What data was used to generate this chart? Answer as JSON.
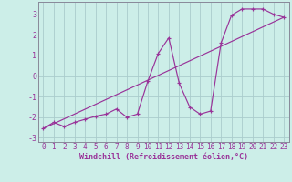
{
  "xlabel": "Windchill (Refroidissement éolien,°C)",
  "bg_color": "#cceee8",
  "grid_color": "#aacccc",
  "line_color": "#993399",
  "axis_color": "#888899",
  "xlim": [
    -0.5,
    23.5
  ],
  "ylim": [
    -3.2,
    3.6
  ],
  "yticks": [
    -3,
    -2,
    -1,
    0,
    1,
    2,
    3
  ],
  "xticks": [
    0,
    1,
    2,
    3,
    4,
    5,
    6,
    7,
    8,
    9,
    10,
    11,
    12,
    13,
    14,
    15,
    16,
    17,
    18,
    19,
    20,
    21,
    22,
    23
  ],
  "line1_x": [
    0,
    1,
    2,
    3,
    4,
    5,
    6,
    7,
    8,
    9,
    10,
    11,
    12,
    13,
    14,
    15,
    16,
    17,
    18,
    19,
    20,
    21,
    22,
    23
  ],
  "line1_y": [
    -2.55,
    -2.25,
    -2.45,
    -2.25,
    -2.1,
    -1.95,
    -1.85,
    -1.6,
    -2.0,
    -1.85,
    -0.25,
    1.1,
    1.85,
    -0.35,
    -1.5,
    -1.85,
    -1.7,
    1.6,
    2.95,
    3.25,
    3.25,
    3.25,
    3.0,
    2.85
  ],
  "line2_x": [
    0,
    23
  ],
  "line2_y": [
    -2.55,
    2.85
  ],
  "tick_fontsize": 5.5,
  "xlabel_fontsize": 6.0
}
